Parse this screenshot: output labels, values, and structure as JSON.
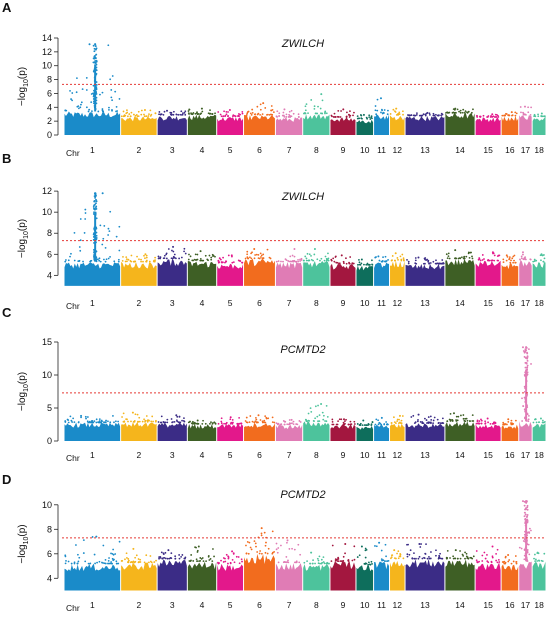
{
  "chart_data": [
    {
      "type": "scatter",
      "panel": "A",
      "title": "ZWILCH",
      "ylabel": "−log10(p)",
      "ylim": [
        0,
        14
      ],
      "yticks": [
        0,
        2,
        4,
        6,
        8,
        10,
        12,
        14
      ],
      "threshold": 7.3,
      "baseline": 0,
      "chromosomes": [
        "1",
        "2",
        "3",
        "4",
        "5",
        "6",
        "7",
        "8",
        "9",
        "10",
        "11",
        "12",
        "13",
        "14",
        "15",
        "16",
        "17",
        "18"
      ],
      "x_axis_label": "Chr",
      "band_top": [
        3.4,
        2.7,
        2.9,
        3.0,
        2.7,
        2.9,
        2.6,
        3.1,
        2.6,
        2.3,
        3.0,
        2.9,
        2.8,
        3.2,
        2.6,
        2.8,
        2.9,
        2.7
      ],
      "peak_max": [
        13.1,
        3.6,
        3.5,
        3.8,
        3.6,
        4.6,
        3.7,
        5.9,
        3.7,
        2.9,
        5.3,
        3.8,
        3.2,
        3.8,
        3.0,
        3.3,
        4.1,
        3.1
      ],
      "signal_chromosome": "1",
      "signal_top": 13.1
    },
    {
      "type": "scatter",
      "panel": "B",
      "title": "ZWILCH",
      "ylabel": "−log10(p)",
      "ylim": [
        2.8,
        12.2
      ],
      "yticks": [
        4,
        6,
        8,
        10,
        12
      ],
      "threshold": 7.3,
      "baseline": 3.0,
      "chromosomes": [
        "1",
        "2",
        "3",
        "4",
        "5",
        "6",
        "7",
        "8",
        "9",
        "10",
        "11",
        "12",
        "13",
        "14",
        "15",
        "16",
        "17",
        "18"
      ],
      "x_axis_label": "Chr",
      "band_top": [
        5.3,
        5.3,
        5.6,
        5.4,
        5.2,
        5.6,
        5.3,
        5.4,
        5.1,
        5.0,
        5.3,
        5.4,
        5.1,
        5.6,
        5.4,
        5.2,
        5.5,
        5.3
      ],
      "peak_max": [
        11.8,
        6.0,
        6.7,
        6.3,
        5.9,
        6.5,
        6.5,
        6.5,
        5.9,
        5.5,
        5.8,
        6.1,
        5.7,
        6.4,
        6.2,
        5.9,
        6.2,
        6.0
      ],
      "signal_chromosome": "1",
      "signal_top": 11.8
    },
    {
      "type": "scatter",
      "panel": "C",
      "title": "PCMTD2",
      "ylabel": "−log10(p)",
      "ylim": [
        0,
        15
      ],
      "yticks": [
        0,
        5,
        10,
        15
      ],
      "threshold": 7.3,
      "baseline": 0,
      "chromosomes": [
        "1",
        "2",
        "3",
        "4",
        "5",
        "6",
        "7",
        "8",
        "9",
        "10",
        "11",
        "12",
        "13",
        "14",
        "15",
        "16",
        "17",
        "18"
      ],
      "x_axis_label": "Chr",
      "band_top": [
        2.8,
        2.9,
        2.8,
        2.6,
        2.6,
        2.8,
        2.5,
        3.0,
        2.5,
        2.4,
        2.5,
        2.7,
        2.7,
        3.0,
        2.6,
        2.5,
        3.0,
        2.8
      ],
      "peak_max": [
        3.8,
        4.3,
        3.9,
        3.1,
        3.6,
        3.9,
        3.2,
        5.6,
        3.3,
        3.1,
        3.5,
        3.8,
        4.0,
        4.2,
        3.4,
        3.3,
        14.2,
        3.4
      ],
      "signal_chromosome": "17",
      "signal_top": 14.2
    },
    {
      "type": "scatter",
      "panel": "D",
      "title": "PCMTD2",
      "ylabel": "−log10(p)",
      "ylim": [
        2.8,
        10.8
      ],
      "yticks": [
        4,
        6,
        8,
        10
      ],
      "threshold": 7.3,
      "baseline": 3.0,
      "chromosomes": [
        "1",
        "2",
        "3",
        "4",
        "5",
        "6",
        "7",
        "8",
        "9",
        "10",
        "11",
        "12",
        "13",
        "14",
        "15",
        "16",
        "17",
        "18"
      ],
      "x_axis_label": "Chr",
      "band_top": [
        5.2,
        5.3,
        5.6,
        5.4,
        5.2,
        6.0,
        5.3,
        5.2,
        5.4,
        5.1,
        5.4,
        5.6,
        5.6,
        5.6,
        5.3,
        5.2,
        5.4,
        5.4
      ],
      "peak_max": [
        7.4,
        6.4,
        6.3,
        6.6,
        6.2,
        8.1,
        7.1,
        6.1,
        6.8,
        6.6,
        6.9,
        6.3,
        6.8,
        6.3,
        6.6,
        5.9,
        10.3,
        6.1
      ],
      "signal_chromosome": "17",
      "signal_top": 10.3
    }
  ],
  "style": {
    "chromosome_colors": [
      "#1A8BC9",
      "#F5B51C",
      "#3B2C86",
      "#3E5F25",
      "#E3188B",
      "#F26C1E",
      "#E07CB5",
      "#4DC39C",
      "#A3173F",
      "#0E6E5C",
      "#1A8BC9",
      "#F5B51C",
      "#3B2C86",
      "#3E5F25",
      "#E3188B",
      "#F26C1E",
      "#E07CB5",
      "#4DC39C"
    ],
    "threshold_color": "#E53935"
  },
  "panels": [
    {
      "letter": "A",
      "gene": "ZWILCH"
    },
    {
      "letter": "B",
      "gene": "ZWILCH"
    },
    {
      "letter": "C",
      "gene": "PCMTD2"
    },
    {
      "letter": "D",
      "gene": "PCMTD2"
    }
  ]
}
